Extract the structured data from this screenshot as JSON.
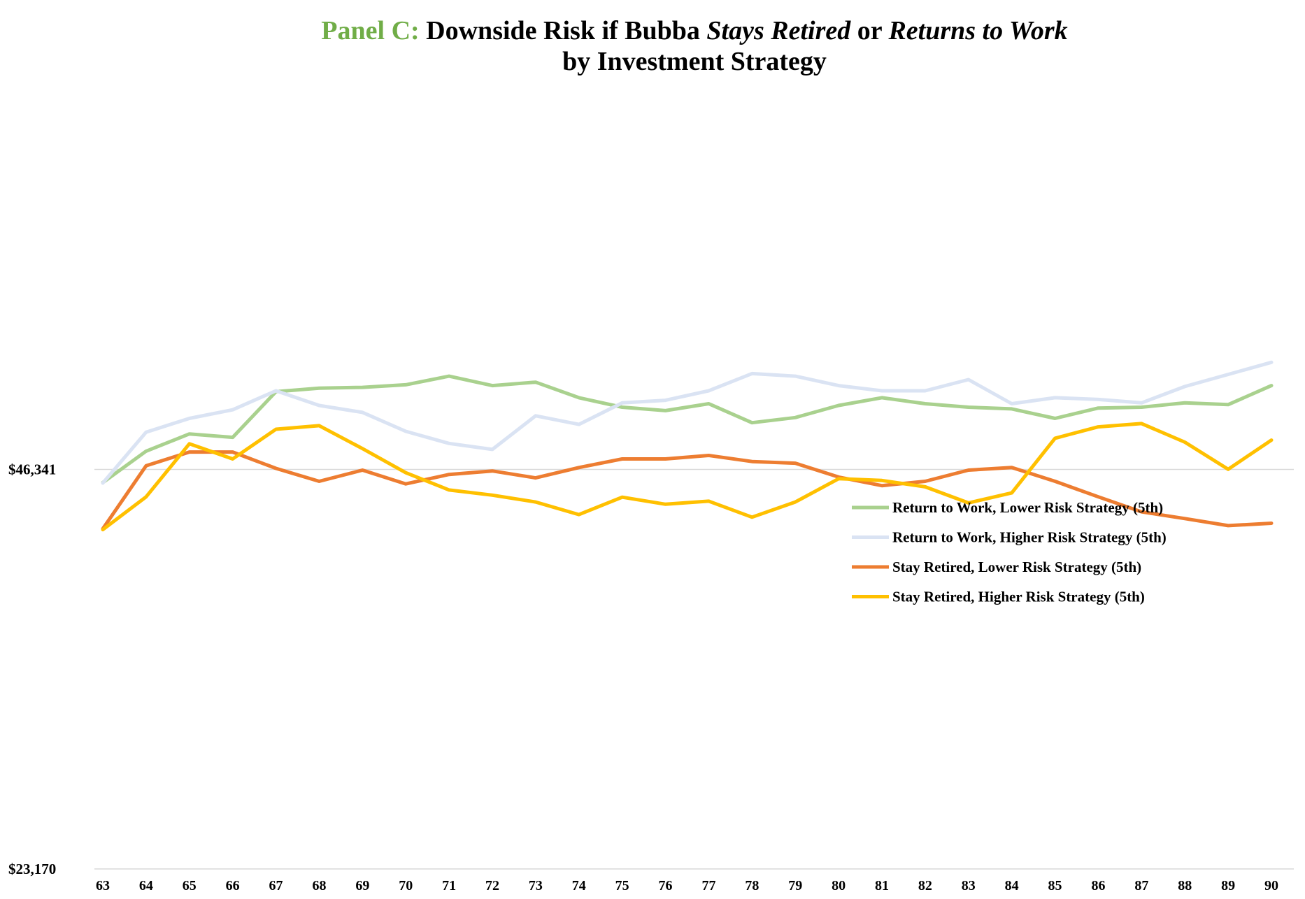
{
  "chart_data": {
    "type": "line",
    "title": {
      "panel": "Panel C:",
      "part1": " Downside Risk if Bubba ",
      "stays_retired": "Stays Retired",
      "or": " or ",
      "returns_to_work": "Returns to Work",
      "line2": "by Investment Strategy"
    },
    "xlabel": "",
    "ylabel": "",
    "x": [
      63,
      64,
      65,
      66,
      67,
      68,
      69,
      70,
      71,
      72,
      73,
      74,
      75,
      76,
      77,
      78,
      79,
      80,
      81,
      82,
      83,
      84,
      85,
      86,
      87,
      88,
      89,
      90
    ],
    "ylim": [
      23170,
      69511
    ],
    "y_ticks": [
      {
        "value": 23170,
        "label": "$23,170"
      },
      {
        "value": 46341,
        "label": "$46,341"
      }
    ],
    "grid": {
      "horizontal_line_at": 46341
    },
    "legend_position": "right-middle",
    "series": [
      {
        "name": "Return to Work, Lower Risk Strategy (5th)",
        "color": "#A9D18E",
        "values": [
          45580,
          47400,
          48400,
          48200,
          50850,
          51050,
          51100,
          51250,
          51750,
          51200,
          51400,
          50500,
          49950,
          49750,
          50150,
          49050,
          49350,
          50050,
          50500,
          50150,
          49950,
          49850,
          49300,
          49900,
          49950,
          50200,
          50100,
          51200
        ]
      },
      {
        "name": "Return to Work, Higher Risk Strategy (5th)",
        "color": "#DAE3F3",
        "values": [
          45550,
          48500,
          49300,
          49800,
          50900,
          50050,
          49650,
          48550,
          47850,
          47500,
          49450,
          48950,
          50200,
          50350,
          50900,
          51900,
          51750,
          51200,
          50900,
          50900,
          51550,
          50150,
          50500,
          50400,
          50200,
          51150,
          51850,
          52550
        ]
      },
      {
        "name": "Stay Retired, Lower Risk Strategy (5th)",
        "color": "#ED7D31",
        "values": [
          42900,
          46550,
          47350,
          47350,
          46400,
          45650,
          46300,
          45500,
          46050,
          46250,
          45850,
          46450,
          46950,
          46950,
          47150,
          46800,
          46700,
          45900,
          45400,
          45650,
          46300,
          46450,
          45650,
          44750,
          43880,
          43490,
          43080,
          43220
        ]
      },
      {
        "name": "Stay Retired, Higher Risk Strategy (5th)",
        "color": "#FFC000",
        "values": [
          42850,
          44750,
          47830,
          46950,
          48670,
          48880,
          47550,
          46150,
          45150,
          44850,
          44450,
          43720,
          44730,
          44320,
          44500,
          43570,
          44450,
          45800,
          45700,
          45330,
          44400,
          44980,
          48150,
          48810,
          49000,
          47920,
          46350,
          48040
        ]
      }
    ]
  }
}
